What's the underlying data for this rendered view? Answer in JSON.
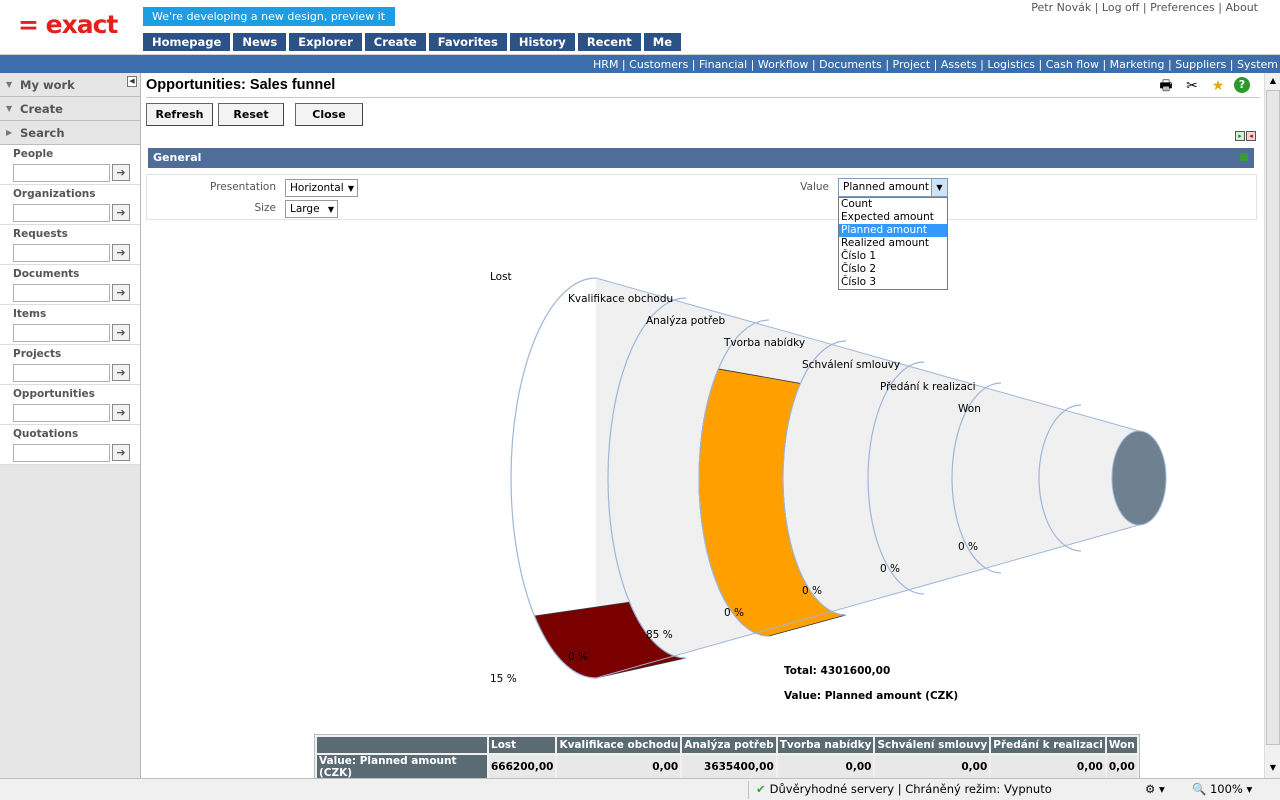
{
  "app": {
    "logo": "= exact",
    "preview_banner": "We're developing a new design, preview it here!"
  },
  "user_links": {
    "user": "Petr Novák",
    "logoff": "Log off",
    "preferences": "Preferences",
    "about": "About"
  },
  "top_nav": [
    "Homepage",
    "News",
    "Explorer",
    "Create",
    "Favorites",
    "History",
    "Recent",
    "Me"
  ],
  "modules": [
    "HRM",
    "Customers",
    "Financial",
    "Workflow",
    "Documents",
    "Project",
    "Assets",
    "Logistics",
    "Cash flow",
    "Marketing",
    "Suppliers",
    "System"
  ],
  "sidebar": {
    "my_work": "My work",
    "create": "Create",
    "search": "Search",
    "sections": [
      "People",
      "Organizations",
      "Requests",
      "Documents",
      "Items",
      "Projects",
      "Opportunities",
      "Quotations"
    ]
  },
  "page": {
    "title": "Opportunities: Sales funnel",
    "buttons": {
      "refresh": "Refresh",
      "reset": "Reset",
      "close": "Close"
    },
    "general": "General",
    "presentation_label": "Presentation",
    "presentation_value": "Horizontal",
    "size_label": "Size",
    "size_value": "Large",
    "value_label": "Value",
    "value_selected": "Planned amount",
    "value_options": [
      "Count",
      "Expected amount",
      "Planned amount",
      "Realized amount",
      "Číslo 1",
      "Číslo 2",
      "Číslo 3"
    ]
  },
  "chart_data": {
    "type": "funnel",
    "categories": [
      "Lost",
      "Kvalifikace obchodu",
      "Analýza potřeb",
      "Tvorba nabídky",
      "Schválení smlouvy",
      "Předání k realizaci",
      "Won"
    ],
    "percent_labels": [
      "15 %",
      "0 %",
      "85 %",
      "0 %",
      "0 %",
      "0 %",
      "0 %"
    ],
    "values": [
      666200.0,
      0.0,
      3635400.0,
      0.0,
      0.0,
      0.0,
      0.0
    ],
    "total": "Total: 4301600,00",
    "value_caption": "Value: Planned amount (CZK)",
    "colors": {
      "lost": "#7a0000",
      "analyza": "#ffa000",
      "won_cap": "#6f8090",
      "body": "#f0f0f0",
      "outline": "#9fb6d8"
    }
  },
  "table": {
    "row_header": "Value: Planned amount (CZK)",
    "headers": [
      "Lost",
      "Kvalifikace obchodu",
      "Analýza potřeb",
      "Tvorba nabídky",
      "Schválení smlouvy",
      "Předání k realizaci",
      "Won"
    ],
    "values": [
      "666200,00",
      "0,00",
      "3635400,00",
      "0,00",
      "0,00",
      "0,00",
      "0,00"
    ]
  },
  "status": {
    "trusted": "Důvěryhodné servery | Chráněný režim: Vypnuto",
    "zoom": "100%"
  }
}
